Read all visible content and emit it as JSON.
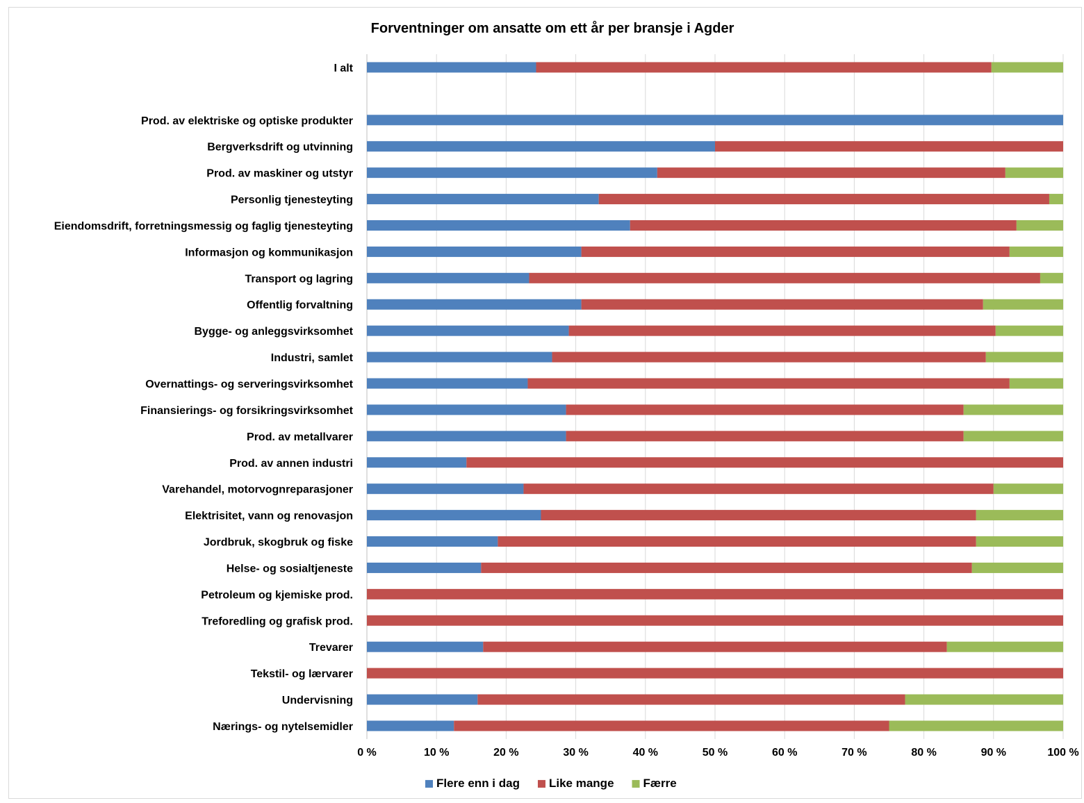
{
  "chart_data": {
    "type": "bar",
    "orientation": "horizontal",
    "stacked": true,
    "percent_stacked": true,
    "title": "Forventninger om ansatte om ett år per bransje i Agder",
    "xlim": [
      0,
      100
    ],
    "x_ticks": [
      "0 %",
      "10 %",
      "20 %",
      "30 %",
      "40 %",
      "50 %",
      "60 %",
      "70 %",
      "80 %",
      "90 %",
      "100 %"
    ],
    "grid": "vertical",
    "legend_position": "bottom",
    "categories": [
      "I alt",
      "",
      "Prod. av elektriske og optiske produkter",
      "Bergverksdrift og utvinning",
      "Prod. av maskiner og utstyr",
      "Personlig tjenesteyting",
      "Eiendomsdrift, forretningsmessig og faglig tjenesteyting",
      "Informasjon og kommunikasjon",
      "Transport og lagring",
      "Offentlig forvaltning",
      "Bygge- og anleggsvirksomhet",
      "Industri, samlet",
      "Overnattings- og serveringsvirksomhet",
      "Finansierings- og forsikringsvirksomhet",
      "Prod. av metallvarer",
      "Prod. av annen industri",
      "Varehandel, motorvognreparasjoner",
      "Elektrisitet, vann og renovasjon",
      "Jordbruk, skogbruk og fiske",
      "Helse- og sosialtjeneste",
      "Petroleum og kjemiske prod.",
      "Treforedling og grafisk prod.",
      "Trevarer",
      "Tekstil- og lærvarer",
      "Undervisning",
      "Nærings- og nytelsemidler"
    ],
    "series": [
      {
        "name": "Flere enn i dag",
        "color": "#4f81bd",
        "values": [
          24.3,
          null,
          100,
          50,
          41.7,
          33.3,
          37.8,
          30.8,
          23.3,
          30.8,
          29,
          26.6,
          23.1,
          28.6,
          28.6,
          14.3,
          22.5,
          25,
          18.8,
          16.4,
          0,
          0,
          16.7,
          0,
          15.9,
          12.5
        ]
      },
      {
        "name": "Like mange",
        "color": "#c0504d",
        "values": [
          65.4,
          null,
          0,
          50,
          50,
          64.7,
          55.5,
          61.5,
          73.4,
          57.7,
          61.3,
          62.3,
          69.2,
          57.1,
          57.1,
          85.7,
          67.5,
          62.5,
          68.7,
          70.5,
          100,
          100,
          66.6,
          100,
          61.4,
          62.5
        ]
      },
      {
        "name": "Færre",
        "color": "#9bbb59",
        "values": [
          10.3,
          null,
          0,
          0,
          8.3,
          2,
          6.7,
          7.7,
          3.3,
          11.5,
          9.7,
          11.1,
          7.7,
          14.3,
          14.3,
          0,
          10,
          12.5,
          12.5,
          13.1,
          0,
          0,
          16.7,
          0,
          22.7,
          25
        ]
      }
    ]
  }
}
